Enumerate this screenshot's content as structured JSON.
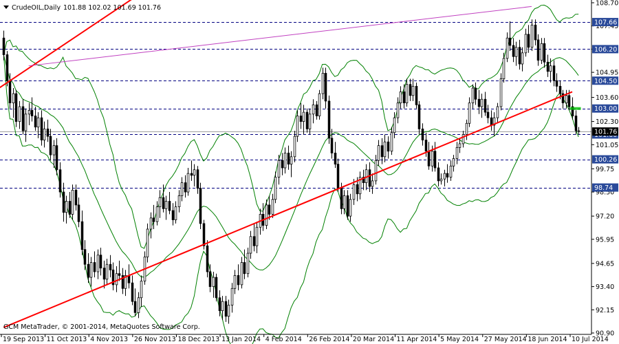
{
  "header": {
    "symbol": "CrudeOIL,Daily",
    "ohlc": "101.88 102.02 101.69 101.76"
  },
  "footer": {
    "copyright": "GCM MetaTrader, © 2001-2014, MetaQuotes Software Corp."
  },
  "colors": {
    "background": "#ffffff",
    "candles": "#000000",
    "bollinger": "#008000",
    "channel": "#ff0000",
    "resistance_line": "#c040c0",
    "levels": "#000080",
    "level_label_bg": "#2a4a9a",
    "current_price_bg": "#000000",
    "marker": "#00c000"
  },
  "chart_data": {
    "type": "candlestick",
    "instrument": "CrudeOIL",
    "timeframe": "Daily",
    "ylim": [
      90.9,
      108.7
    ],
    "y_ticks": [
      108.7,
      107.45,
      106.2,
      104.95,
      103.6,
      102.3,
      101.05,
      99.75,
      98.5,
      97.2,
      95.95,
      94.65,
      93.4,
      92.15,
      90.9
    ],
    "y_tick_labels": [
      "108.70",
      "107.45",
      "106.20",
      "104.95",
      "103.60",
      "102.30",
      "101.05",
      "99.75",
      "98.50",
      "97.20",
      "95.95",
      "94.65",
      "93.40",
      "92.15",
      "90.90"
    ],
    "x_tick_labels": [
      "19 Sep 2013",
      "11 Oct 2013",
      "4 Nov 2013",
      "26 Nov 2013",
      "18 Dec 2013",
      "13 Jan 2014",
      "4 Feb 2014",
      "26 Feb 2014",
      "20 Mar 2014",
      "11 Apr 2014",
      "5 May 2014",
      "27 May 2014",
      "18 Jun 2014",
      "10 Jul 2014"
    ],
    "horizontal_levels": [
      {
        "value": 107.66,
        "label": "107.66"
      },
      {
        "value": 106.2,
        "label": "106.20"
      },
      {
        "value": 104.5,
        "label": "104.50"
      },
      {
        "value": 103.0,
        "label": "103.00"
      },
      {
        "value": 101.6,
        "label": "101.60"
      },
      {
        "value": 100.26,
        "label": "100.26"
      },
      {
        "value": 98.74,
        "label": "98.74"
      }
    ],
    "current_price": {
      "value": 101.76,
      "label": "101.76"
    },
    "trendlines": [
      {
        "name": "channel-lower",
        "from": [
          0,
          91.2
        ],
        "to": [
          182,
          103.9
        ]
      },
      {
        "name": "channel-upper",
        "from": [
          -29,
          101.0
        ],
        "to": [
          42,
          109.0
        ]
      },
      {
        "name": "resistance",
        "from": [
          8,
          105.3
        ],
        "to": [
          169,
          108.5
        ]
      }
    ],
    "candles": [
      {
        "o": 106.8,
        "h": 107.2,
        "l": 105.6,
        "c": 105.9
      },
      {
        "o": 105.9,
        "h": 106.1,
        "l": 104.2,
        "c": 104.5
      },
      {
        "o": 104.5,
        "h": 104.9,
        "l": 103.0,
        "c": 103.3
      },
      {
        "o": 103.3,
        "h": 104.1,
        "l": 102.5,
        "c": 103.8
      },
      {
        "o": 103.8,
        "h": 104.0,
        "l": 102.0,
        "c": 102.3
      },
      {
        "o": 102.3,
        "h": 103.4,
        "l": 101.9,
        "c": 103.1
      },
      {
        "o": 103.1,
        "h": 103.5,
        "l": 101.6,
        "c": 101.8
      },
      {
        "o": 101.8,
        "h": 103.0,
        "l": 101.2,
        "c": 102.7
      },
      {
        "o": 102.7,
        "h": 103.3,
        "l": 102.1,
        "c": 102.9
      },
      {
        "o": 102.9,
        "h": 103.6,
        "l": 102.3,
        "c": 102.6
      },
      {
        "o": 102.6,
        "h": 103.1,
        "l": 101.8,
        "c": 102.0
      },
      {
        "o": 102.0,
        "h": 102.8,
        "l": 101.4,
        "c": 102.5
      },
      {
        "o": 102.5,
        "h": 102.9,
        "l": 101.0,
        "c": 101.3
      },
      {
        "o": 101.3,
        "h": 102.3,
        "l": 100.9,
        "c": 101.9
      },
      {
        "o": 101.9,
        "h": 102.4,
        "l": 101.2,
        "c": 101.5
      },
      {
        "o": 101.5,
        "h": 101.9,
        "l": 100.2,
        "c": 100.5
      },
      {
        "o": 100.5,
        "h": 101.3,
        "l": 99.8,
        "c": 101.0
      },
      {
        "o": 101.0,
        "h": 101.4,
        "l": 99.4,
        "c": 99.7
      },
      {
        "o": 99.7,
        "h": 100.1,
        "l": 98.2,
        "c": 98.5
      },
      {
        "o": 98.5,
        "h": 99.0,
        "l": 96.9,
        "c": 97.4
      },
      {
        "o": 97.4,
        "h": 98.3,
        "l": 96.8,
        "c": 98.0
      },
      {
        "o": 98.0,
        "h": 98.5,
        "l": 97.1,
        "c": 97.3
      },
      {
        "o": 97.3,
        "h": 98.9,
        "l": 97.0,
        "c": 98.6
      },
      {
        "o": 98.6,
        "h": 98.9,
        "l": 97.5,
        "c": 97.8
      },
      {
        "o": 97.8,
        "h": 98.2,
        "l": 96.6,
        "c": 96.9
      },
      {
        "o": 96.9,
        "h": 97.5,
        "l": 95.1,
        "c": 95.4
      },
      {
        "o": 95.4,
        "h": 95.9,
        "l": 94.3,
        "c": 94.6
      },
      {
        "o": 94.6,
        "h": 95.2,
        "l": 93.6,
        "c": 93.9
      },
      {
        "o": 93.9,
        "h": 95.0,
        "l": 93.4,
        "c": 94.7
      },
      {
        "o": 94.7,
        "h": 95.3,
        "l": 93.9,
        "c": 94.2
      },
      {
        "o": 94.2,
        "h": 95.4,
        "l": 93.8,
        "c": 95.1
      },
      {
        "o": 95.1,
        "h": 95.5,
        "l": 94.0,
        "c": 94.4
      },
      {
        "o": 94.4,
        "h": 94.8,
        "l": 93.3,
        "c": 93.8
      },
      {
        "o": 93.8,
        "h": 94.9,
        "l": 93.5,
        "c": 94.6
      },
      {
        "o": 94.6,
        "h": 95.1,
        "l": 93.9,
        "c": 94.3
      },
      {
        "o": 94.3,
        "h": 94.7,
        "l": 93.2,
        "c": 93.5
      },
      {
        "o": 93.5,
        "h": 94.5,
        "l": 93.1,
        "c": 94.1
      },
      {
        "o": 94.1,
        "h": 94.8,
        "l": 93.7,
        "c": 94.0
      },
      {
        "o": 94.0,
        "h": 94.4,
        "l": 93.0,
        "c": 93.3
      },
      {
        "o": 93.3,
        "h": 94.3,
        "l": 92.9,
        "c": 94.0
      },
      {
        "o": 94.0,
        "h": 94.6,
        "l": 93.3,
        "c": 93.6
      },
      {
        "o": 93.6,
        "h": 94.0,
        "l": 92.4,
        "c": 92.6
      },
      {
        "o": 92.6,
        "h": 93.3,
        "l": 91.8,
        "c": 92.0
      },
      {
        "o": 92.0,
        "h": 93.1,
        "l": 91.7,
        "c": 92.8
      },
      {
        "o": 92.8,
        "h": 94.0,
        "l": 92.3,
        "c": 93.7
      },
      {
        "o": 93.7,
        "h": 95.3,
        "l": 93.5,
        "c": 95.0
      },
      {
        "o": 95.0,
        "h": 96.8,
        "l": 94.7,
        "c": 96.5
      },
      {
        "o": 96.5,
        "h": 97.4,
        "l": 96.0,
        "c": 97.1
      },
      {
        "o": 97.1,
        "h": 97.8,
        "l": 96.5,
        "c": 96.9
      },
      {
        "o": 96.9,
        "h": 98.0,
        "l": 96.7,
        "c": 97.7
      },
      {
        "o": 97.7,
        "h": 98.6,
        "l": 97.1,
        "c": 98.2
      },
      {
        "o": 98.2,
        "h": 98.9,
        "l": 97.4,
        "c": 97.6
      },
      {
        "o": 97.6,
        "h": 98.3,
        "l": 97.0,
        "c": 98.0
      },
      {
        "o": 98.0,
        "h": 98.5,
        "l": 97.3,
        "c": 97.5
      },
      {
        "o": 97.5,
        "h": 97.9,
        "l": 96.7,
        "c": 97.0
      },
      {
        "o": 97.0,
        "h": 98.0,
        "l": 96.8,
        "c": 97.7
      },
      {
        "o": 97.7,
        "h": 98.6,
        "l": 97.4,
        "c": 98.3
      },
      {
        "o": 98.3,
        "h": 99.3,
        "l": 98.0,
        "c": 99.0
      },
      {
        "o": 99.0,
        "h": 99.4,
        "l": 98.2,
        "c": 98.5
      },
      {
        "o": 98.5,
        "h": 99.8,
        "l": 98.3,
        "c": 99.5
      },
      {
        "o": 99.5,
        "h": 100.2,
        "l": 99.1,
        "c": 99.4
      },
      {
        "o": 99.4,
        "h": 100.0,
        "l": 98.8,
        "c": 99.7
      },
      {
        "o": 99.7,
        "h": 99.9,
        "l": 98.4,
        "c": 98.7
      },
      {
        "o": 98.7,
        "h": 99.0,
        "l": 96.5,
        "c": 96.8
      },
      {
        "o": 96.8,
        "h": 97.0,
        "l": 95.4,
        "c": 95.6
      },
      {
        "o": 95.6,
        "h": 95.9,
        "l": 93.9,
        "c": 94.2
      },
      {
        "o": 94.2,
        "h": 94.6,
        "l": 93.1,
        "c": 93.4
      },
      {
        "o": 93.4,
        "h": 94.2,
        "l": 92.8,
        "c": 93.9
      },
      {
        "o": 93.9,
        "h": 94.1,
        "l": 92.6,
        "c": 92.8
      },
      {
        "o": 92.8,
        "h": 93.2,
        "l": 91.8,
        "c": 92.1
      },
      {
        "o": 92.1,
        "h": 92.9,
        "l": 91.6,
        "c": 92.6
      },
      {
        "o": 92.6,
        "h": 92.9,
        "l": 91.5,
        "c": 91.8
      },
      {
        "o": 91.8,
        "h": 92.7,
        "l": 91.4,
        "c": 92.4
      },
      {
        "o": 92.4,
        "h": 93.6,
        "l": 92.0,
        "c": 93.3
      },
      {
        "o": 93.3,
        "h": 94.3,
        "l": 93.0,
        "c": 94.0
      },
      {
        "o": 94.0,
        "h": 94.6,
        "l": 93.2,
        "c": 93.5
      },
      {
        "o": 93.5,
        "h": 95.0,
        "l": 93.3,
        "c": 94.7
      },
      {
        "o": 94.7,
        "h": 95.4,
        "l": 93.8,
        "c": 94.1
      },
      {
        "o": 94.1,
        "h": 95.5,
        "l": 93.9,
        "c": 95.2
      },
      {
        "o": 95.2,
        "h": 96.4,
        "l": 94.9,
        "c": 96.1
      },
      {
        "o": 96.1,
        "h": 96.8,
        "l": 95.3,
        "c": 95.6
      },
      {
        "o": 95.6,
        "h": 96.9,
        "l": 95.2,
        "c": 96.6
      },
      {
        "o": 96.6,
        "h": 97.6,
        "l": 96.2,
        "c": 97.3
      },
      {
        "o": 97.3,
        "h": 97.9,
        "l": 96.4,
        "c": 96.7
      },
      {
        "o": 96.7,
        "h": 98.1,
        "l": 96.5,
        "c": 97.8
      },
      {
        "o": 97.8,
        "h": 98.3,
        "l": 97.0,
        "c": 97.3
      },
      {
        "o": 97.3,
        "h": 98.4,
        "l": 97.1,
        "c": 98.1
      },
      {
        "o": 98.1,
        "h": 99.6,
        "l": 97.9,
        "c": 99.3
      },
      {
        "o": 99.3,
        "h": 100.5,
        "l": 98.9,
        "c": 100.2
      },
      {
        "o": 100.2,
        "h": 100.6,
        "l": 99.4,
        "c": 99.8
      },
      {
        "o": 99.8,
        "h": 100.9,
        "l": 99.5,
        "c": 100.6
      },
      {
        "o": 100.6,
        "h": 101.0,
        "l": 99.7,
        "c": 100.0
      },
      {
        "o": 100.0,
        "h": 100.7,
        "l": 99.3,
        "c": 100.4
      },
      {
        "o": 100.4,
        "h": 101.8,
        "l": 100.1,
        "c": 101.5
      },
      {
        "o": 101.5,
        "h": 102.9,
        "l": 101.2,
        "c": 102.6
      },
      {
        "o": 102.6,
        "h": 103.3,
        "l": 101.9,
        "c": 102.3
      },
      {
        "o": 102.3,
        "h": 103.2,
        "l": 101.6,
        "c": 102.8
      },
      {
        "o": 102.8,
        "h": 103.0,
        "l": 101.7,
        "c": 101.9
      },
      {
        "o": 101.9,
        "h": 103.0,
        "l": 101.6,
        "c": 102.7
      },
      {
        "o": 102.7,
        "h": 103.5,
        "l": 102.2,
        "c": 103.2
      },
      {
        "o": 103.2,
        "h": 103.4,
        "l": 102.4,
        "c": 102.6
      },
      {
        "o": 102.6,
        "h": 104.0,
        "l": 102.4,
        "c": 103.8
      },
      {
        "o": 103.8,
        "h": 105.2,
        "l": 103.5,
        "c": 104.9
      },
      {
        "o": 104.9,
        "h": 105.2,
        "l": 103.0,
        "c": 103.4
      },
      {
        "o": 103.4,
        "h": 103.7,
        "l": 101.1,
        "c": 101.4
      },
      {
        "o": 101.4,
        "h": 101.9,
        "l": 100.3,
        "c": 100.6
      },
      {
        "o": 100.6,
        "h": 101.2,
        "l": 99.8,
        "c": 100.0
      },
      {
        "o": 100.0,
        "h": 100.3,
        "l": 98.5,
        "c": 98.7
      },
      {
        "o": 98.7,
        "h": 99.0,
        "l": 97.3,
        "c": 97.6
      },
      {
        "o": 97.6,
        "h": 98.6,
        "l": 97.3,
        "c": 98.3
      },
      {
        "o": 98.3,
        "h": 98.6,
        "l": 97.0,
        "c": 97.2
      },
      {
        "o": 97.2,
        "h": 98.4,
        "l": 96.9,
        "c": 98.1
      },
      {
        "o": 98.1,
        "h": 99.2,
        "l": 97.8,
        "c": 98.9
      },
      {
        "o": 98.9,
        "h": 99.3,
        "l": 98.0,
        "c": 98.4
      },
      {
        "o": 98.4,
        "h": 99.6,
        "l": 98.1,
        "c": 99.3
      },
      {
        "o": 99.3,
        "h": 99.7,
        "l": 98.6,
        "c": 99.0
      },
      {
        "o": 99.0,
        "h": 100.0,
        "l": 98.6,
        "c": 99.7
      },
      {
        "o": 99.7,
        "h": 100.1,
        "l": 98.5,
        "c": 98.8
      },
      {
        "o": 98.8,
        "h": 99.5,
        "l": 98.4,
        "c": 99.1
      },
      {
        "o": 99.1,
        "h": 100.5,
        "l": 98.9,
        "c": 100.2
      },
      {
        "o": 100.2,
        "h": 101.3,
        "l": 99.9,
        "c": 101.0
      },
      {
        "o": 101.0,
        "h": 101.4,
        "l": 100.0,
        "c": 100.4
      },
      {
        "o": 100.4,
        "h": 101.6,
        "l": 100.1,
        "c": 101.2
      },
      {
        "o": 101.2,
        "h": 101.5,
        "l": 100.3,
        "c": 100.7
      },
      {
        "o": 100.7,
        "h": 102.0,
        "l": 100.5,
        "c": 101.7
      },
      {
        "o": 101.7,
        "h": 102.8,
        "l": 101.4,
        "c": 102.5
      },
      {
        "o": 102.5,
        "h": 103.6,
        "l": 102.2,
        "c": 103.3
      },
      {
        "o": 103.3,
        "h": 104.2,
        "l": 103.0,
        "c": 103.9
      },
      {
        "o": 103.9,
        "h": 104.3,
        "l": 103.0,
        "c": 103.3
      },
      {
        "o": 103.3,
        "h": 104.6,
        "l": 103.1,
        "c": 104.3
      },
      {
        "o": 104.3,
        "h": 104.6,
        "l": 103.4,
        "c": 103.7
      },
      {
        "o": 103.7,
        "h": 104.6,
        "l": 103.4,
        "c": 104.2
      },
      {
        "o": 104.2,
        "h": 104.4,
        "l": 103.0,
        "c": 103.2
      },
      {
        "o": 103.2,
        "h": 103.4,
        "l": 101.6,
        "c": 101.9
      },
      {
        "o": 101.9,
        "h": 102.2,
        "l": 101.0,
        "c": 101.3
      },
      {
        "o": 101.3,
        "h": 101.7,
        "l": 100.4,
        "c": 100.7
      },
      {
        "o": 100.7,
        "h": 101.2,
        "l": 99.7,
        "c": 99.9
      },
      {
        "o": 99.9,
        "h": 101.0,
        "l": 99.6,
        "c": 100.7
      },
      {
        "o": 100.7,
        "h": 101.2,
        "l": 99.6,
        "c": 99.8
      },
      {
        "o": 99.8,
        "h": 100.1,
        "l": 98.8,
        "c": 99.1
      },
      {
        "o": 99.1,
        "h": 99.5,
        "l": 98.9,
        "c": 99.2
      },
      {
        "o": 99.2,
        "h": 99.7,
        "l": 98.8,
        "c": 99.5
      },
      {
        "o": 99.5,
        "h": 100.0,
        "l": 99.0,
        "c": 99.3
      },
      {
        "o": 99.3,
        "h": 100.2,
        "l": 99.1,
        "c": 99.9
      },
      {
        "o": 99.9,
        "h": 100.5,
        "l": 99.6,
        "c": 100.3
      },
      {
        "o": 100.3,
        "h": 101.2,
        "l": 100.0,
        "c": 100.9
      },
      {
        "o": 100.9,
        "h": 101.4,
        "l": 100.6,
        "c": 101.1
      },
      {
        "o": 101.1,
        "h": 101.8,
        "l": 100.9,
        "c": 101.6
      },
      {
        "o": 101.6,
        "h": 102.4,
        "l": 101.3,
        "c": 102.2
      },
      {
        "o": 102.2,
        "h": 103.6,
        "l": 102.0,
        "c": 103.3
      },
      {
        "o": 103.3,
        "h": 104.3,
        "l": 103.0,
        "c": 104.1
      },
      {
        "o": 104.1,
        "h": 104.4,
        "l": 103.2,
        "c": 103.5
      },
      {
        "o": 103.5,
        "h": 104.0,
        "l": 102.7,
        "c": 103.1
      },
      {
        "o": 103.1,
        "h": 103.8,
        "l": 102.5,
        "c": 103.5
      },
      {
        "o": 103.5,
        "h": 103.9,
        "l": 102.6,
        "c": 102.8
      },
      {
        "o": 102.8,
        "h": 103.2,
        "l": 102.2,
        "c": 102.5
      },
      {
        "o": 102.5,
        "h": 102.9,
        "l": 101.8,
        "c": 102.1
      },
      {
        "o": 102.1,
        "h": 102.8,
        "l": 101.5,
        "c": 102.5
      },
      {
        "o": 102.5,
        "h": 103.3,
        "l": 102.2,
        "c": 103.1
      },
      {
        "o": 103.1,
        "h": 104.9,
        "l": 102.9,
        "c": 104.6
      },
      {
        "o": 104.6,
        "h": 106.0,
        "l": 104.4,
        "c": 105.7
      },
      {
        "o": 105.7,
        "h": 107.1,
        "l": 105.5,
        "c": 106.8
      },
      {
        "o": 106.8,
        "h": 107.7,
        "l": 106.1,
        "c": 106.4
      },
      {
        "o": 106.4,
        "h": 106.8,
        "l": 105.5,
        "c": 105.8
      },
      {
        "o": 105.8,
        "h": 106.6,
        "l": 105.3,
        "c": 106.3
      },
      {
        "o": 106.3,
        "h": 106.7,
        "l": 105.1,
        "c": 105.4
      },
      {
        "o": 105.4,
        "h": 106.3,
        "l": 105.0,
        "c": 106.0
      },
      {
        "o": 106.0,
        "h": 107.3,
        "l": 105.8,
        "c": 107.0
      },
      {
        "o": 107.0,
        "h": 107.5,
        "l": 106.0,
        "c": 106.3
      },
      {
        "o": 106.3,
        "h": 107.8,
        "l": 106.1,
        "c": 107.5
      },
      {
        "o": 107.5,
        "h": 107.8,
        "l": 106.4,
        "c": 106.7
      },
      {
        "o": 106.7,
        "h": 107.0,
        "l": 105.3,
        "c": 105.6
      },
      {
        "o": 105.6,
        "h": 106.8,
        "l": 105.4,
        "c": 106.5
      },
      {
        "o": 106.5,
        "h": 106.8,
        "l": 105.2,
        "c": 105.5
      },
      {
        "o": 105.5,
        "h": 105.9,
        "l": 104.7,
        "c": 105.0
      },
      {
        "o": 105.0,
        "h": 105.7,
        "l": 104.4,
        "c": 105.3
      },
      {
        "o": 105.3,
        "h": 105.6,
        "l": 104.2,
        "c": 104.5
      },
      {
        "o": 104.5,
        "h": 104.9,
        "l": 103.9,
        "c": 104.2
      },
      {
        "o": 104.2,
        "h": 104.5,
        "l": 103.5,
        "c": 103.8
      },
      {
        "o": 103.8,
        "h": 104.0,
        "l": 103.0,
        "c": 103.3
      },
      {
        "o": 103.3,
        "h": 104.0,
        "l": 103.0,
        "c": 103.7
      },
      {
        "o": 103.7,
        "h": 104.0,
        "l": 102.9,
        "c": 103.1
      },
      {
        "o": 103.1,
        "h": 103.6,
        "l": 102.4,
        "c": 102.6
      },
      {
        "o": 102.6,
        "h": 102.9,
        "l": 101.6,
        "c": 101.8
      },
      {
        "o": 101.8,
        "h": 102.0,
        "l": 101.6,
        "c": 101.8
      }
    ]
  }
}
